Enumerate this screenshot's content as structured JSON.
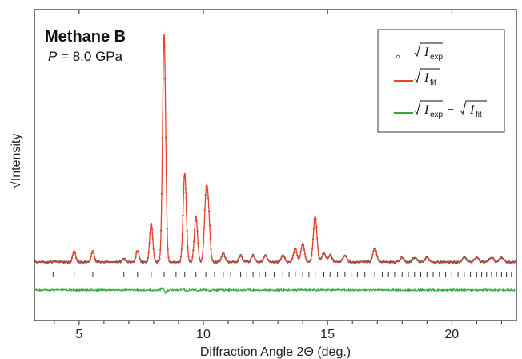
{
  "chart_data": {
    "type": "line",
    "title": "Methane B",
    "subtitle_symbol": "P",
    "subtitle_rest": " = 8.0 GPa",
    "xlabel": "Diffraction Angle 2Θ (deg.)",
    "ylabel": "√Intensity",
    "xlim": [
      3.2,
      22.6
    ],
    "xticks": [
      5,
      10,
      15,
      20
    ],
    "xtick_labels": [
      "5",
      "10",
      "15",
      "20"
    ],
    "legend_position": "top-right",
    "colors": {
      "exp": "#555555",
      "fit": "#e8412c",
      "diff": "#2faa3a",
      "tick_mark": "#333333"
    },
    "legend": {
      "exp": {
        "symbol": "I",
        "sub": "exp"
      },
      "fit": {
        "symbol": "I",
        "sub": "fit"
      },
      "diff": {
        "symbol1": "I",
        "sub1": "exp",
        "op": "−",
        "symbol2": "I",
        "sub2": "fit"
      }
    },
    "relative_intensity_background": 0.0,
    "peaks": [
      {
        "x": 4.8,
        "h": 0.05
      },
      {
        "x": 5.55,
        "h": 0.05
      },
      {
        "x": 6.8,
        "h": 0.015
      },
      {
        "x": 7.35,
        "h": 0.05
      },
      {
        "x": 7.9,
        "h": 0.17
      },
      {
        "x": 8.42,
        "h": 1.0
      },
      {
        "x": 9.25,
        "h": 0.39
      },
      {
        "x": 9.7,
        "h": 0.2
      },
      {
        "x": 10.1,
        "h": 0.25
      },
      {
        "x": 10.2,
        "h": 0.2
      },
      {
        "x": 10.8,
        "h": 0.04
      },
      {
        "x": 11.5,
        "h": 0.03
      },
      {
        "x": 12.0,
        "h": 0.03
      },
      {
        "x": 12.5,
        "h": 0.03
      },
      {
        "x": 13.2,
        "h": 0.03
      },
      {
        "x": 13.7,
        "h": 0.06
      },
      {
        "x": 14.0,
        "h": 0.08
      },
      {
        "x": 14.5,
        "h": 0.2
      },
      {
        "x": 14.85,
        "h": 0.04
      },
      {
        "x": 15.1,
        "h": 0.03
      },
      {
        "x": 15.7,
        "h": 0.03
      },
      {
        "x": 16.9,
        "h": 0.06
      },
      {
        "x": 18.0,
        "h": 0.02
      },
      {
        "x": 18.5,
        "h": 0.02
      },
      {
        "x": 19.0,
        "h": 0.02
      },
      {
        "x": 20.5,
        "h": 0.02
      },
      {
        "x": 21.0,
        "h": 0.02
      },
      {
        "x": 21.6,
        "h": 0.02
      },
      {
        "x": 22.0,
        "h": 0.02
      }
    ],
    "reflection_positions": [
      3.95,
      4.8,
      5.55,
      6.8,
      7.35,
      7.9,
      8.42,
      8.9,
      9.25,
      9.7,
      10.1,
      10.45,
      10.8,
      11.1,
      11.5,
      11.75,
      12.0,
      12.25,
      12.5,
      12.85,
      13.2,
      13.45,
      13.7,
      14.0,
      14.25,
      14.5,
      14.85,
      15.1,
      15.4,
      15.7,
      15.95,
      16.2,
      16.5,
      16.9,
      17.2,
      17.45,
      17.7,
      18.0,
      18.25,
      18.5,
      18.75,
      19.0,
      19.25,
      19.5,
      19.75,
      20.0,
      20.25,
      20.5,
      20.75,
      21.0,
      21.2,
      21.4,
      21.6,
      21.8,
      22.0,
      22.2,
      22.4
    ]
  }
}
